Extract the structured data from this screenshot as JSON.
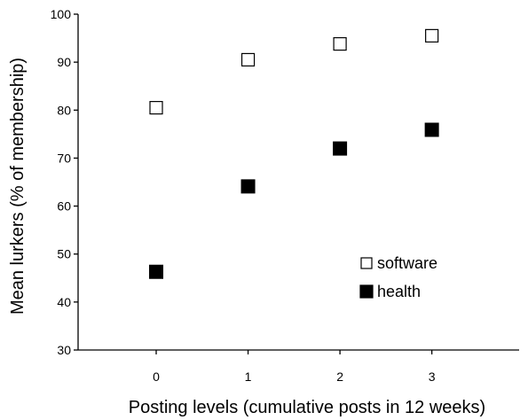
{
  "chart_data": {
    "type": "scatter",
    "xlabel": "Posting levels (cumulative posts in 12 weeks)",
    "ylabel": "Mean lurkers (% of membership)",
    "x": [
      0,
      1,
      2,
      3
    ],
    "xlim": [
      -0.85,
      3.95
    ],
    "ylim": [
      30,
      100
    ],
    "x_ticks": [
      0,
      1,
      2,
      3
    ],
    "y_ticks": [
      30,
      40,
      50,
      60,
      70,
      80,
      90,
      100
    ],
    "grid": false,
    "legend_position": "lower-right",
    "series": [
      {
        "name": "software",
        "marker": "open-square",
        "color": "#000000",
        "x": [
          0,
          1,
          2,
          3
        ],
        "values": [
          80.5,
          90.5,
          93.8,
          95.5
        ]
      },
      {
        "name": "health",
        "marker": "filled-square",
        "color": "#000000",
        "x": [
          0,
          1,
          2,
          3
        ],
        "values": [
          46.3,
          64.1,
          72.0,
          75.9
        ]
      }
    ]
  }
}
